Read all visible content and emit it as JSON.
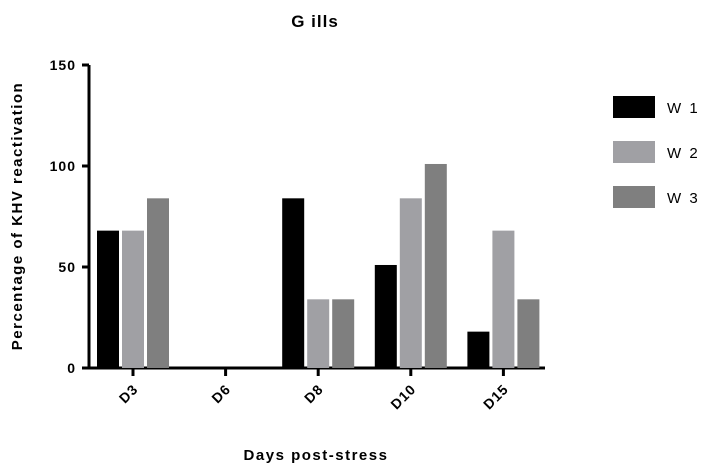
{
  "chart_data": {
    "type": "bar",
    "title": "G ills",
    "xlabel": "Days post-stress",
    "ylabel": "Percentage of KHV reactivation",
    "ylim": [
      0,
      150
    ],
    "yticks": [
      0,
      50,
      100,
      150
    ],
    "categories": [
      "D3",
      "D6",
      "D8",
      "D10",
      "D15"
    ],
    "series": [
      {
        "name": "W 1",
        "color": "#000000",
        "values": [
          68,
          0,
          84,
          51,
          18
        ]
      },
      {
        "name": "W 2",
        "color": "#a0a0a4",
        "values": [
          68,
          0,
          34,
          84,
          68
        ]
      },
      {
        "name": "W 3",
        "color": "#7f7f7f",
        "values": [
          84,
          0,
          34,
          101,
          34
        ]
      }
    ],
    "legend": "right",
    "grid": false
  }
}
